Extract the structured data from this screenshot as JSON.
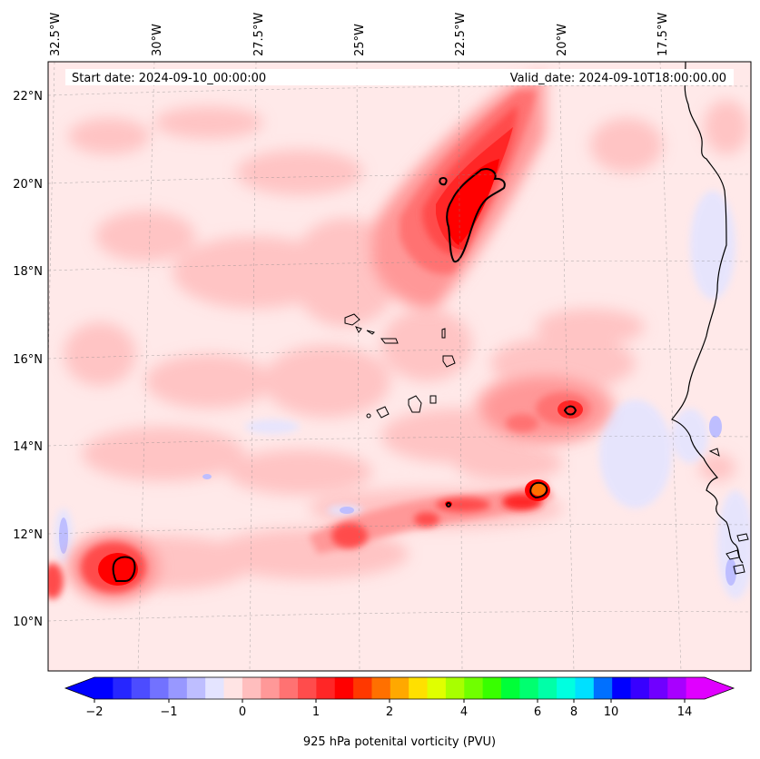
{
  "header": {
    "start_date": "Start date: 2024-09-10_00:00:00",
    "valid_date": "Valid_date: 2024-09-10T18:00:00.00"
  },
  "longitude_labels": [
    "32.5°W",
    "30°W",
    "27.5°W",
    "25°W",
    "22.5°W",
    "20°W",
    "17.5°W"
  ],
  "latitude_labels": [
    "22°N",
    "20°N",
    "18°N",
    "16°N",
    "14°N",
    "12°N",
    "10°N"
  ],
  "colorbar": {
    "label": "925 hPa potenital vorticity (PVU)",
    "tick_labels": [
      "−2",
      "−1",
      "0",
      "1",
      "2",
      "4",
      "6",
      "8",
      "10",
      "14"
    ],
    "colors": [
      "#0000ff",
      "#2626ff",
      "#4c4cff",
      "#7272ff",
      "#9898ff",
      "#bebeff",
      "#e4e4ff",
      "#ffe4e4",
      "#ffbebe",
      "#ff9898",
      "#ff7272",
      "#ff4c4c",
      "#ff2626",
      "#ff0000",
      "#ff3800",
      "#ff7000",
      "#ffa800",
      "#ffe000",
      "#e0ff00",
      "#a8ff00",
      "#70ff00",
      "#38ff00",
      "#00ff38",
      "#00ff70",
      "#00ffa8",
      "#00ffe0",
      "#00e0ff",
      "#0070ff",
      "#0000ff",
      "#3800ff",
      "#7000ff",
      "#a800ff",
      "#e000ff"
    ],
    "extend": "both"
  },
  "map": {
    "domain": "Cabo Verde / West Africa coast",
    "lon_range": [
      -33,
      -16
    ],
    "lat_range": [
      9,
      22.8
    ],
    "gridlines": true
  }
}
